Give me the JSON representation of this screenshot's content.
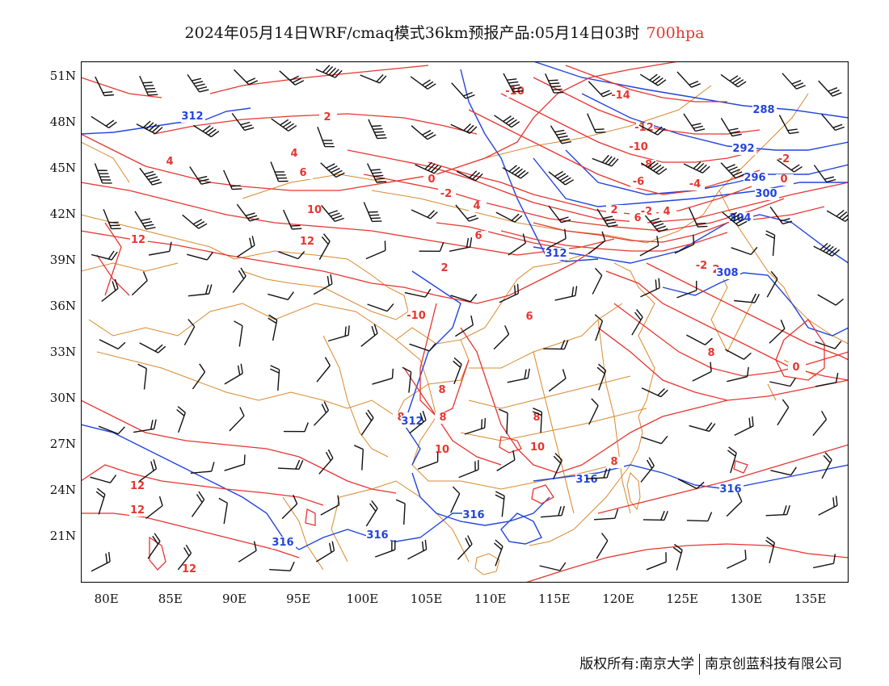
{
  "title": {
    "text": "2024年05月14日WRF/cmaq模式36km预报产品:05月14日03时",
    "level": "700hpa",
    "level_color": "#e8352f"
  },
  "axes": {
    "lat_labels": [
      "51N",
      "48N",
      "45N",
      "42N",
      "39N",
      "36N",
      "33N",
      "30N",
      "27N",
      "24N",
      "21N"
    ],
    "lat_values": [
      51,
      48,
      45,
      42,
      39,
      36,
      33,
      30,
      27,
      24,
      21
    ],
    "lon_labels": [
      "80E",
      "85E",
      "90E",
      "95E",
      "100E",
      "105E",
      "110E",
      "115E",
      "120E",
      "125E",
      "130E",
      "135E"
    ],
    "lon_values": [
      80,
      85,
      90,
      95,
      100,
      105,
      110,
      115,
      120,
      125,
      130,
      135
    ],
    "lon_range": [
      78,
      138
    ],
    "lat_range": [
      18,
      52
    ]
  },
  "colors": {
    "temperature_contour": "#e8352f",
    "geopotential_contour": "#2244dd",
    "boundary": "#d9892e",
    "wind_barb": "#111111"
  },
  "temperature_labels": [
    "-14",
    "-12",
    "-10",
    "-10",
    "-8",
    "-6",
    "-4",
    "-2",
    "-2",
    "-2",
    "0",
    "0",
    "0",
    "2",
    "2",
    "2",
    "4",
    "4",
    "4",
    "4",
    "6",
    "6",
    "6",
    "6",
    "8",
    "8",
    "8",
    "8",
    "8",
    "10",
    "10",
    "10",
    "12",
    "12",
    "12",
    "12",
    "12",
    "-2",
    "-10",
    "2",
    "8"
  ],
  "geopotential_labels": [
    "312",
    "288",
    "292",
    "296",
    "300",
    "304",
    "308",
    "312",
    "312",
    "316",
    "316",
    "316",
    "316",
    "316"
  ],
  "credit": {
    "left": "版权所有:南京大学",
    "right": "南京创蓝科技有限公司"
  }
}
